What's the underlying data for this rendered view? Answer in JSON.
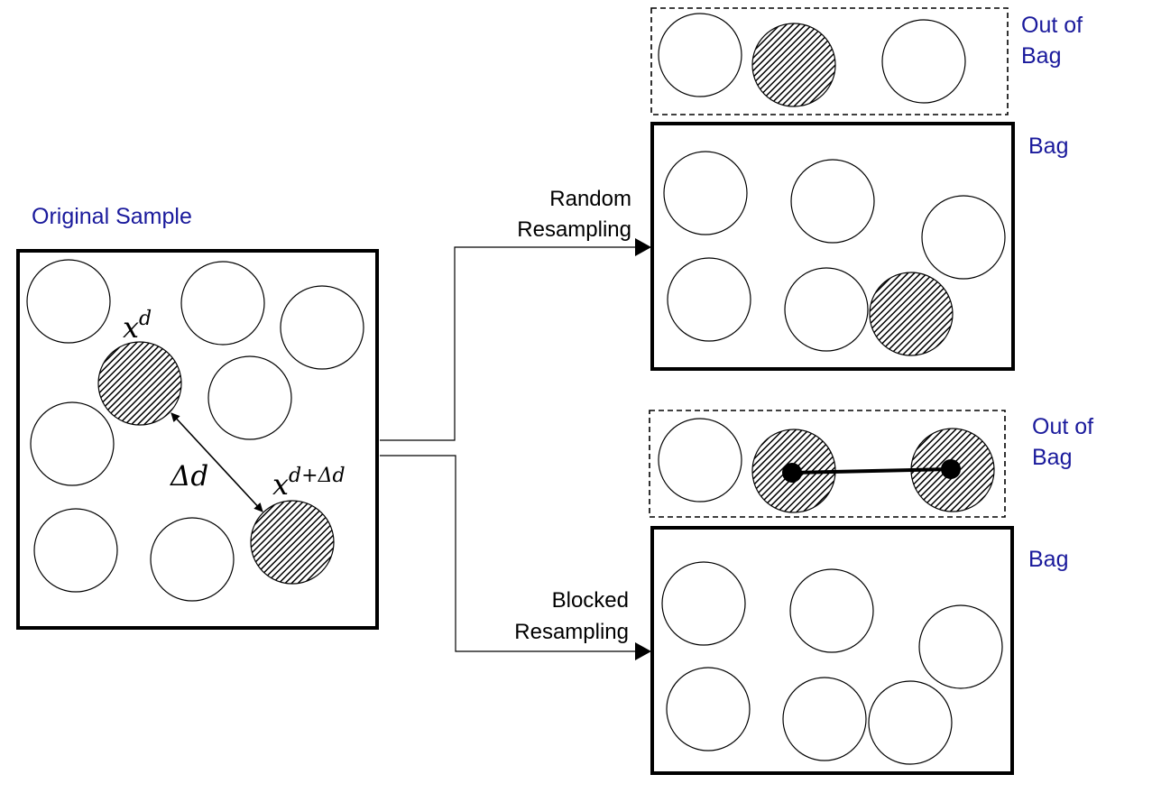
{
  "labels": {
    "original_sample": "Original Sample",
    "random_line1": "Random",
    "random_line2": "Resampling",
    "blocked_line1": "Blocked",
    "blocked_line2": "Resampling",
    "oob1_line1": "Out of",
    "oob1_line2": "Bag",
    "bag1": "Bag",
    "oob2_line1": "Out of",
    "oob2_line2": "Bag",
    "bag2": "Bag"
  },
  "math": {
    "x_d_base": "x",
    "x_d_sup": "d",
    "x_dd_base": "x",
    "x_dd_sup": "d+Δd",
    "delta_d": "Δd"
  },
  "colors": {
    "label_blue": "#1a1a9c",
    "line": "#000000",
    "fill": "#ffffff"
  }
}
